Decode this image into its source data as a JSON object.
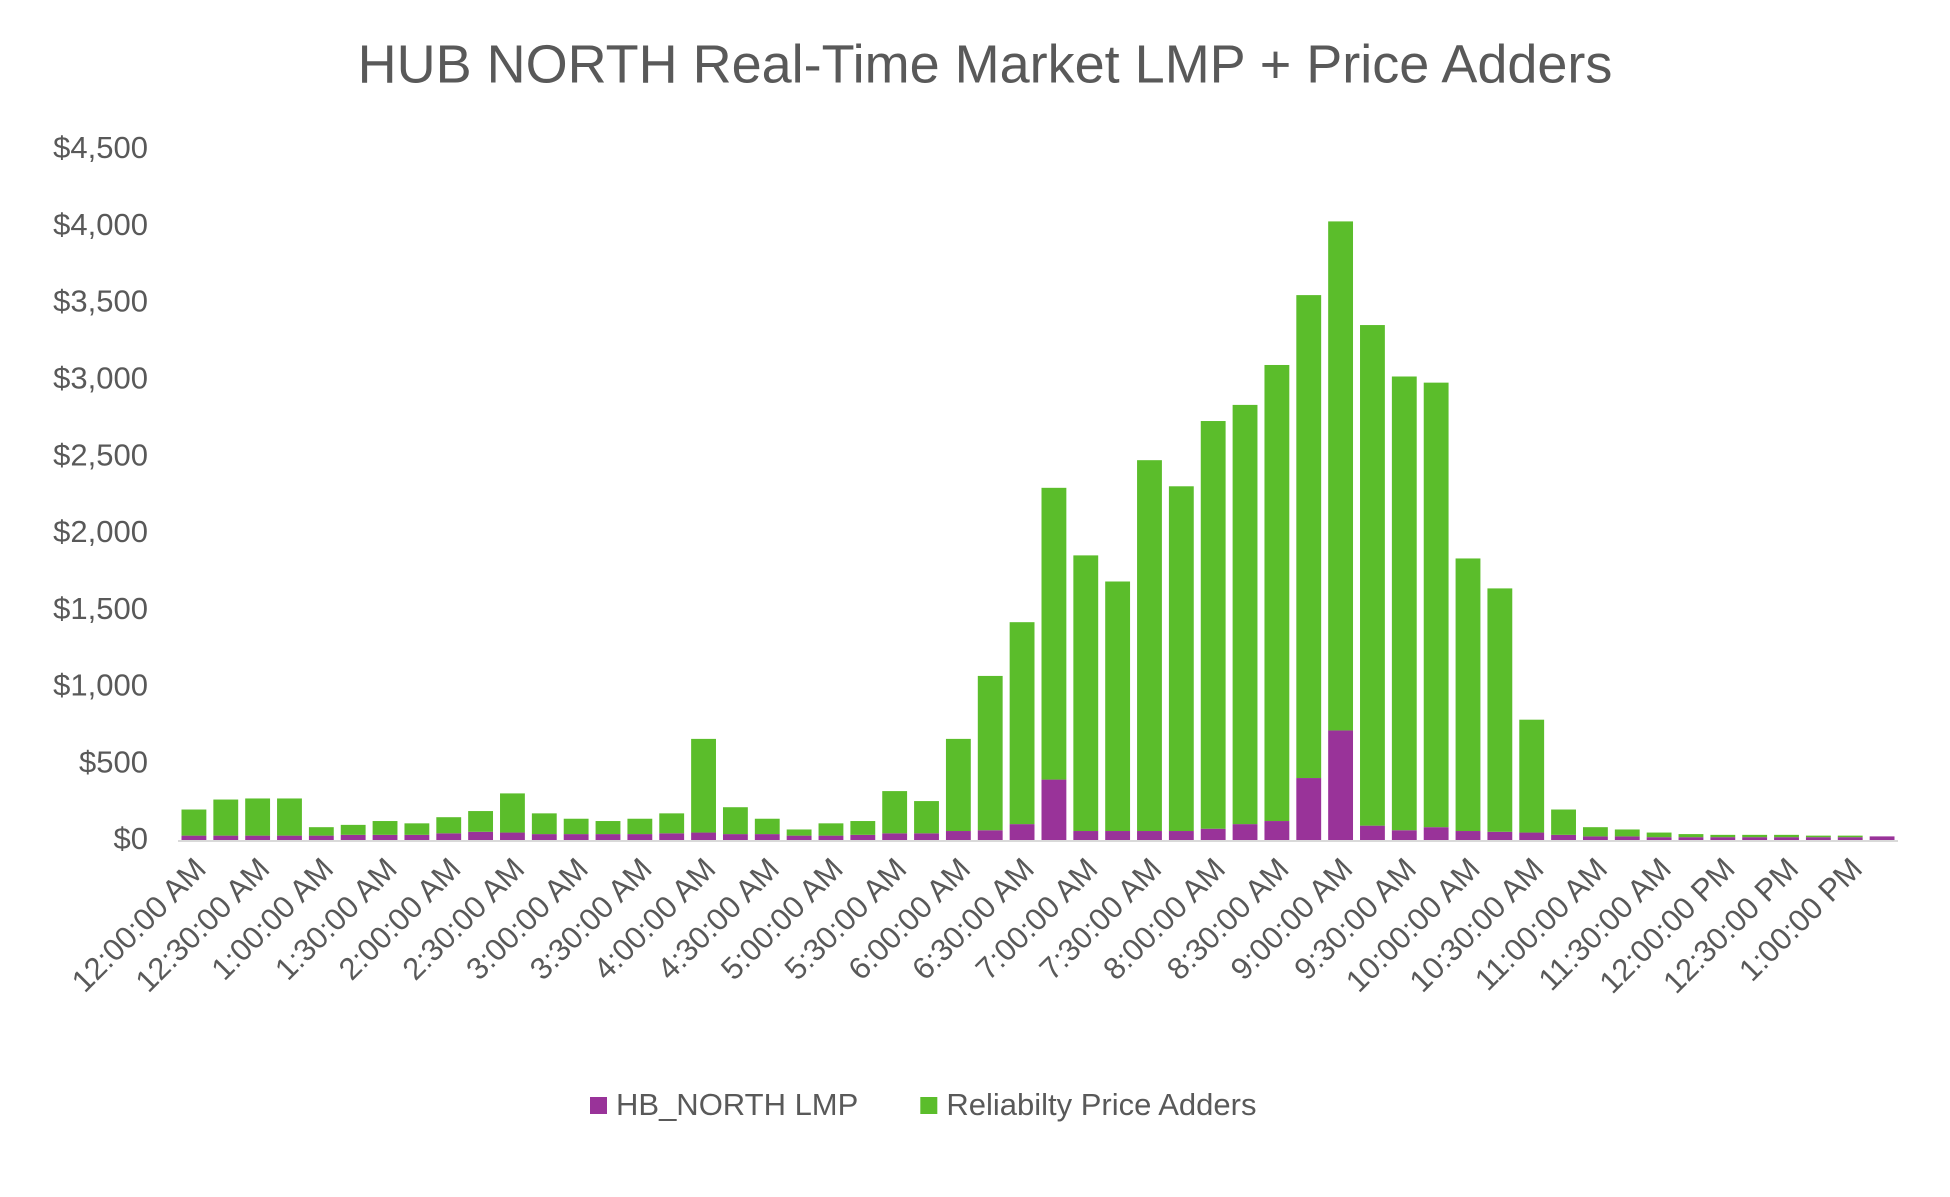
{
  "chart_data": {
    "type": "stacked_bar",
    "title": "HUB NORTH Real-Time Market LMP + Price Adders",
    "categories": [
      "12:00:00 AM",
      null,
      "12:30:00 AM",
      null,
      "1:00:00 AM",
      null,
      "1:30:00 AM",
      null,
      "2:00:00 AM",
      null,
      "2:30:00 AM",
      null,
      "3:00:00 AM",
      null,
      "3:30:00 AM",
      null,
      "4:00:00 AM",
      null,
      "4:30:00 AM",
      null,
      "5:00:00 AM",
      null,
      "5:30:00 AM",
      null,
      "6:00:00 AM",
      null,
      "6:30:00 AM",
      null,
      "7:00:00 AM",
      null,
      "7:30:00 AM",
      null,
      "8:00:00 AM",
      null,
      "8:30:00 AM",
      null,
      "9:00:00 AM",
      null,
      "9:30:00 AM",
      null,
      "10:00:00 AM",
      null,
      "10:30:00 AM",
      null,
      "11:00:00 AM",
      null,
      "11:30:00 AM",
      null,
      "12:00:00 PM",
      null,
      "12:30:00 PM",
      null,
      "1:00:00 PM",
      null
    ],
    "series": [
      {
        "name": "HB_NORTH LMP",
        "color": "#993399",
        "values": [
          35,
          35,
          35,
          35,
          35,
          40,
          40,
          40,
          50,
          60,
          55,
          45,
          45,
          45,
          45,
          50,
          55,
          45,
          45,
          35,
          35,
          40,
          50,
          50,
          65,
          70,
          110,
          400,
          65,
          65,
          65,
          65,
          80,
          110,
          130,
          410,
          720,
          100,
          70,
          90,
          65,
          60,
          55,
          40,
          30,
          30,
          25,
          25,
          25,
          25,
          25,
          25,
          25,
          30
        ]
      },
      {
        "name": "Reliabilty Price Adders",
        "color": "#5bbd2b",
        "values": [
          170,
          235,
          242,
          242,
          55,
          65,
          90,
          75,
          105,
          135,
          255,
          135,
          100,
          85,
          100,
          130,
          610,
          175,
          100,
          40,
          80,
          90,
          275,
          210,
          600,
          1005,
          1315,
          1900,
          1795,
          1625,
          2415,
          2245,
          2655,
          2730,
          2970,
          3145,
          3315,
          3260,
          2955,
          2895,
          1775,
          1585,
          735,
          165,
          60,
          45,
          30,
          20,
          15,
          15,
          15,
          10,
          10,
          -5
        ]
      }
    ],
    "ylim": [
      0,
      4500
    ],
    "yticks": [
      {
        "value": 0,
        "label": "$0"
      },
      {
        "value": 500,
        "label": "$500"
      },
      {
        "value": 1000,
        "label": "$1,000"
      },
      {
        "value": 1500,
        "label": "$1,500"
      },
      {
        "value": 2000,
        "label": "$2,000"
      },
      {
        "value": 2500,
        "label": "$2,500"
      },
      {
        "value": 3000,
        "label": "$3,000"
      },
      {
        "value": 3500,
        "label": "$3,500"
      },
      {
        "value": 4000,
        "label": "$4,000"
      },
      {
        "value": 4500,
        "label": "$4,500"
      }
    ],
    "grid": false,
    "legend": "bottom"
  }
}
